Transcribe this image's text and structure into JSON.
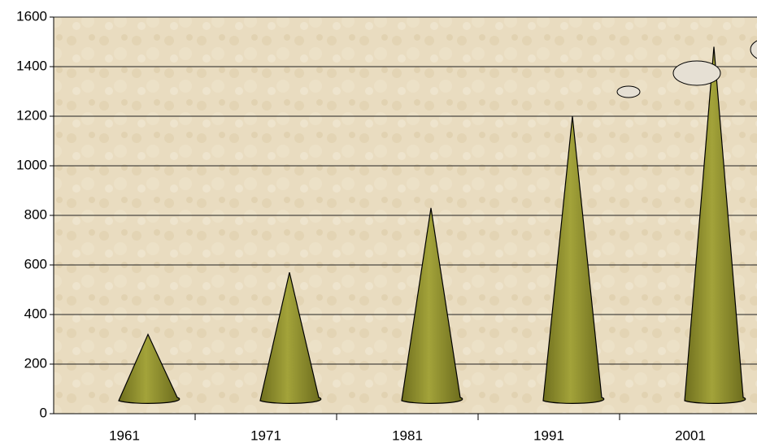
{
  "chart_data": {
    "type": "cone",
    "categories": [
      "1961",
      "1971",
      "1981",
      "1991",
      "2001"
    ],
    "values": [
      320,
      570,
      830,
      1200,
      1480
    ],
    "color": "#8c8c2a",
    "ylim": [
      0,
      1600
    ],
    "yticks": [
      0,
      200,
      400,
      600,
      800,
      1000,
      1200,
      1400,
      1600
    ],
    "grid": true
  }
}
